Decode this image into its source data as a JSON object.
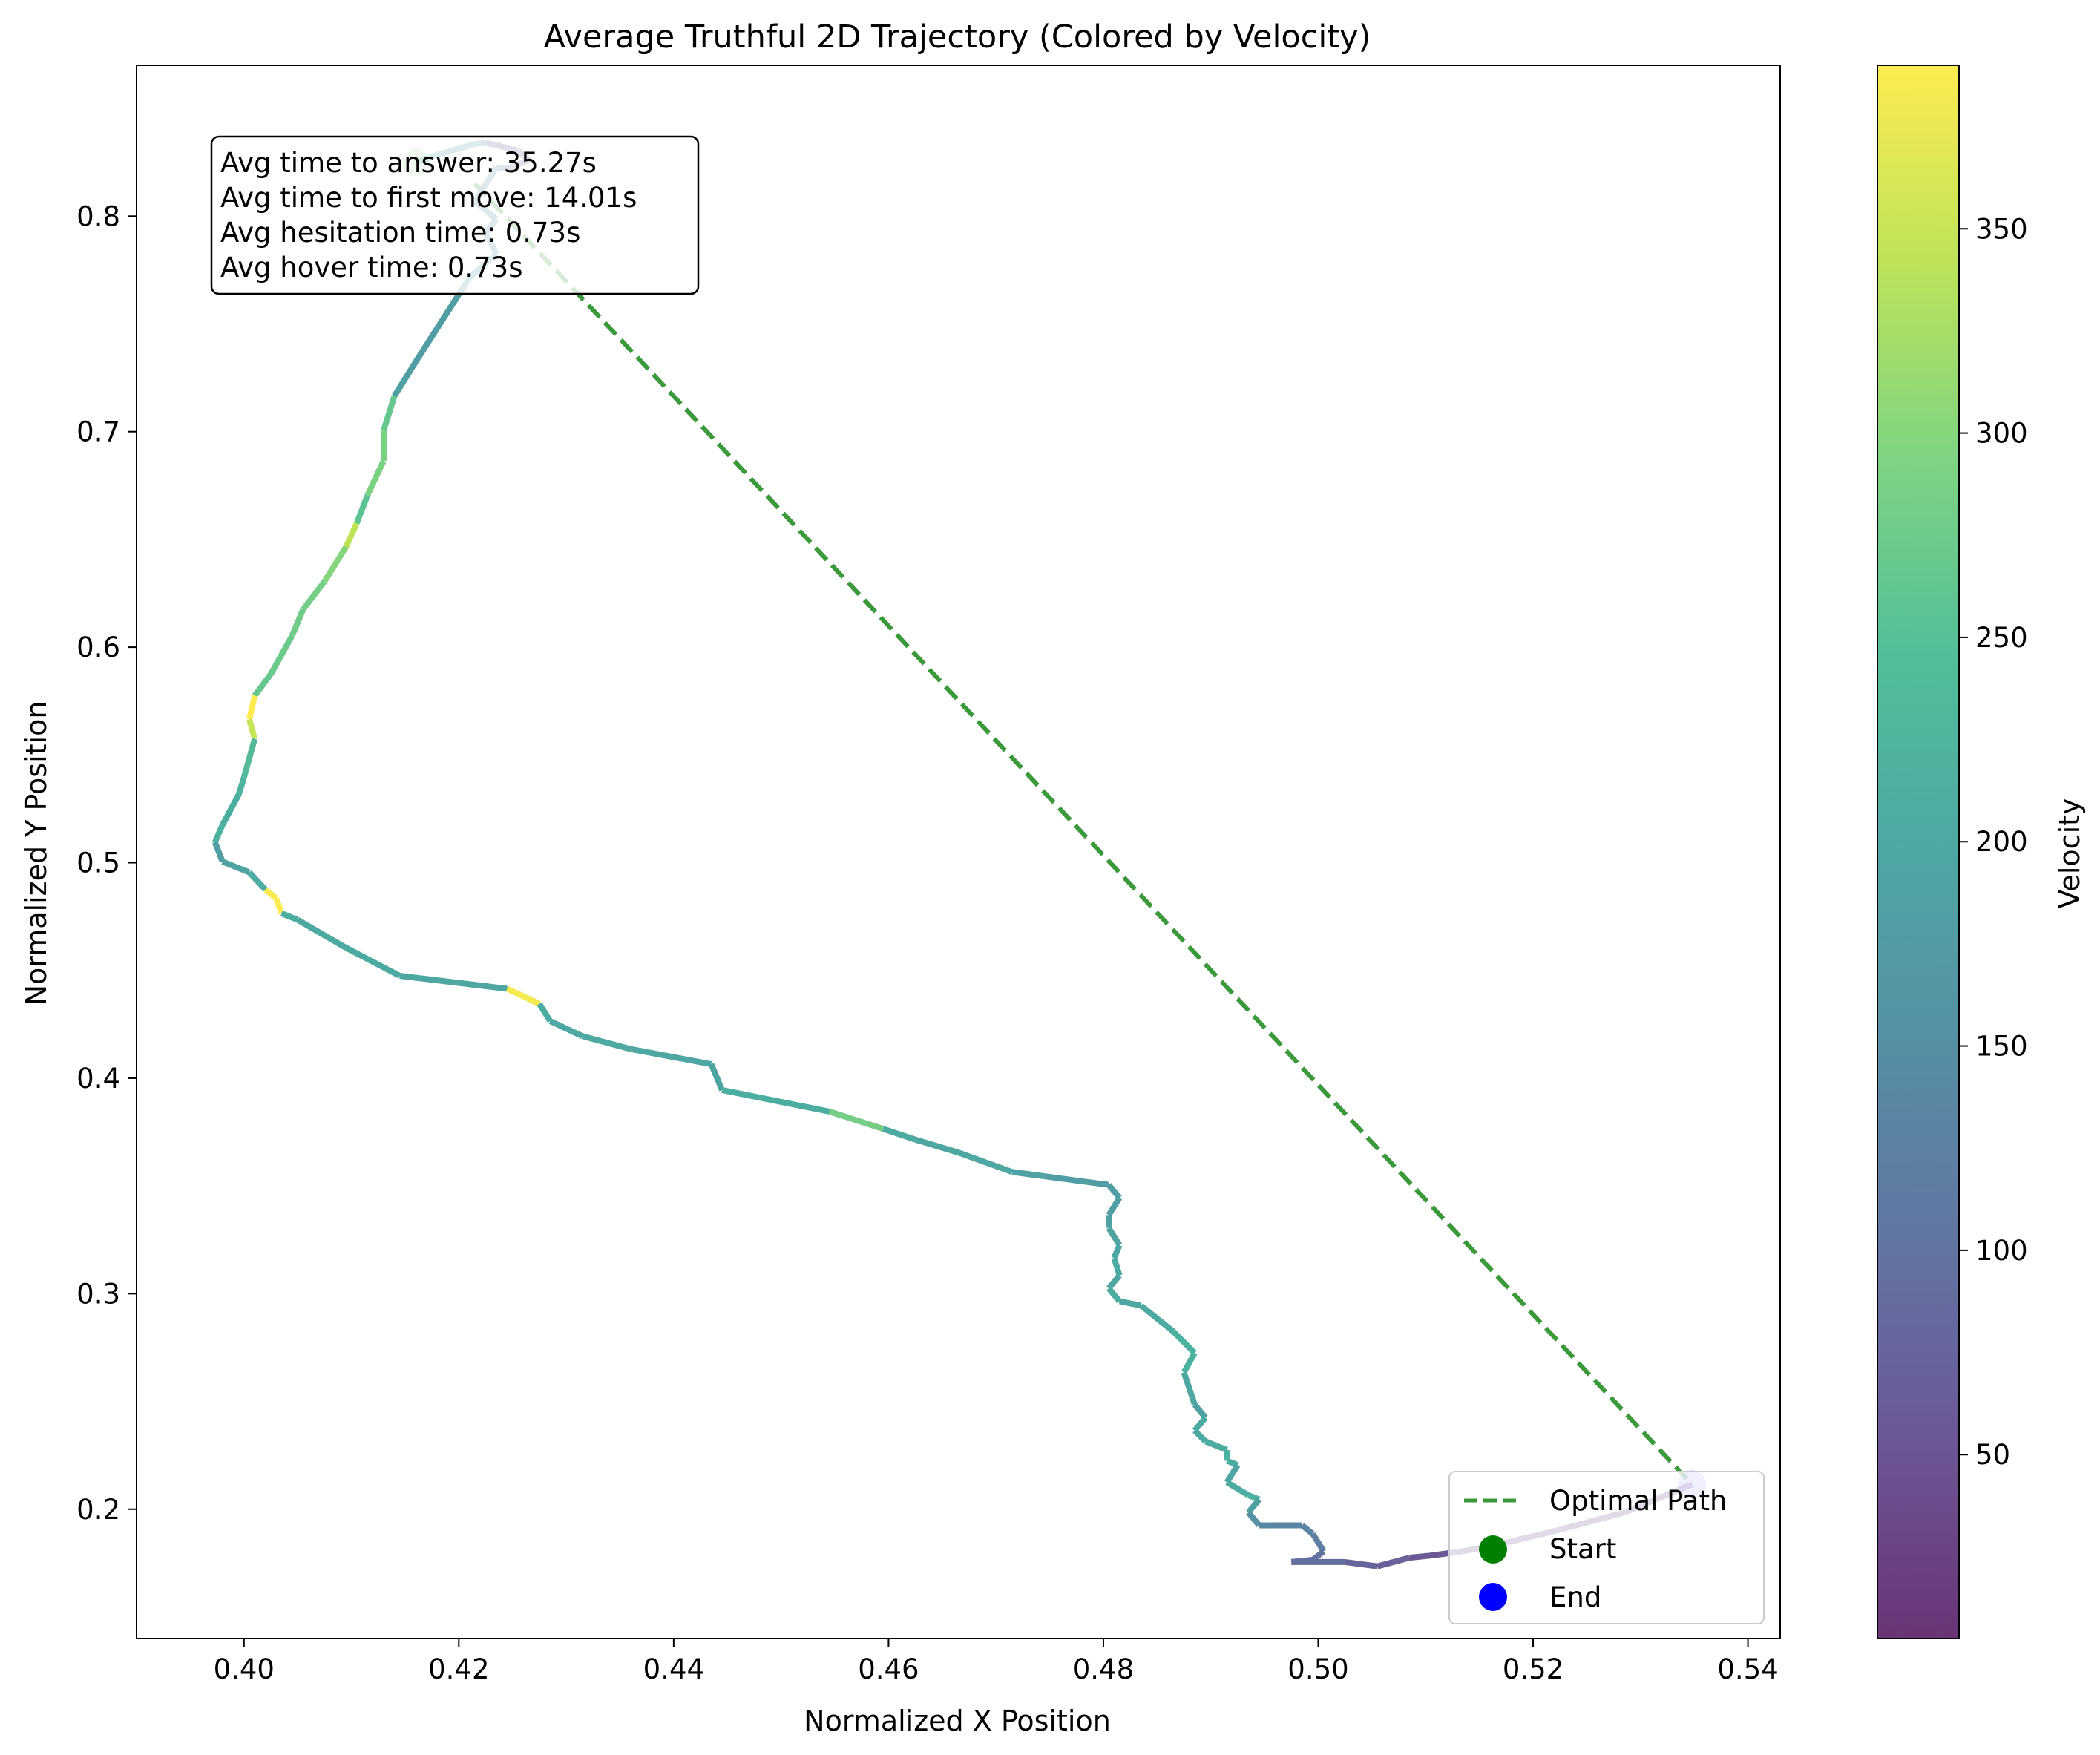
{
  "chart_data": {
    "type": "line",
    "title": "Average Truthful 2D Trajectory (Colored by Velocity)",
    "xlabel": "Normalized X Position",
    "ylabel": "Normalized Y Position",
    "xlim": [
      0.39,
      0.543
    ],
    "ylim": [
      0.14,
      0.87
    ],
    "xticks": [
      "0.40",
      "0.42",
      "0.44",
      "0.46",
      "0.48",
      "0.50",
      "0.52",
      "0.54"
    ],
    "yticks": [
      "0.2",
      "0.3",
      "0.4",
      "0.5",
      "0.6",
      "0.7",
      "0.8"
    ],
    "grid": false,
    "legend_position": "lower right",
    "annotations": [
      "Avg time to answer: 35.27s",
      "Avg time to first move: 14.01s",
      "Avg hesitation time: 0.73s",
      "Avg hover time: 0.73s"
    ],
    "colorbar": {
      "label": "Velocity",
      "colormap": "viridis",
      "range": [
        5,
        390
      ],
      "ticks": [
        "50",
        "100",
        "150",
        "200",
        "250",
        "300",
        "350"
      ]
    },
    "series": [
      {
        "name": "Optimal Path",
        "style": "dashed",
        "color": "#3a9a3a",
        "x": [
          0.4215,
          0.5348
        ],
        "y": [
          0.815,
          0.2115
        ]
      },
      {
        "name": "Start",
        "style": "marker",
        "color": "#008000",
        "x": [
          0.416
        ],
        "y": [
          0.825
        ]
      },
      {
        "name": "End",
        "style": "marker",
        "color": "#0000ff",
        "x": [
          0.5348
        ],
        "y": [
          0.2115
        ]
      }
    ],
    "trajectory": {
      "x": [
        0.416,
        0.418,
        0.4215,
        0.4225,
        0.4235,
        0.4245,
        0.4255,
        0.4265,
        0.4245,
        0.4235,
        0.4215,
        0.4235,
        0.4225,
        0.4235,
        0.421,
        0.416,
        0.414,
        0.413,
        0.413,
        0.4115,
        0.4105,
        0.4095,
        0.4075,
        0.4055,
        0.4045,
        0.4025,
        0.401,
        0.4005,
        0.401,
        0.4,
        0.3995,
        0.398,
        0.3973,
        0.398,
        0.4005,
        0.402,
        0.403,
        0.4035,
        0.405,
        0.4095,
        0.4145,
        0.4245,
        0.4275,
        0.4285,
        0.4315,
        0.436,
        0.4435,
        0.4445,
        0.4545,
        0.4595,
        0.4625,
        0.4665,
        0.4715,
        0.4745,
        0.4805,
        0.4815,
        0.4805,
        0.4805,
        0.4815,
        0.481,
        0.4815,
        0.4805,
        0.4815,
        0.4835,
        0.4855,
        0.4865,
        0.4885,
        0.4875,
        0.4885,
        0.4895,
        0.4885,
        0.4895,
        0.4915,
        0.4915,
        0.4925,
        0.4915,
        0.4935,
        0.4945,
        0.4935,
        0.4945,
        0.4955,
        0.4985,
        0.4995,
        0.5005,
        0.4995,
        0.4975,
        0.5025,
        0.5055,
        0.5085,
        0.5105,
        0.5135,
        0.5175,
        0.5225,
        0.5285,
        0.5348
      ],
      "y": [
        0.825,
        0.8285,
        0.8335,
        0.834,
        0.833,
        0.8315,
        0.8305,
        0.826,
        0.822,
        0.8225,
        0.807,
        0.7985,
        0.7925,
        0.7825,
        0.7715,
        0.7325,
        0.7165,
        0.7005,
        0.6865,
        0.6705,
        0.6575,
        0.6465,
        0.6305,
        0.6175,
        0.6055,
        0.5875,
        0.5775,
        0.5665,
        0.5575,
        0.5395,
        0.5315,
        0.5175,
        0.5095,
        0.5005,
        0.4955,
        0.4875,
        0.4835,
        0.4765,
        0.4735,
        0.4605,
        0.4475,
        0.4415,
        0.4345,
        0.4265,
        0.4195,
        0.4135,
        0.4065,
        0.3945,
        0.3845,
        0.3765,
        0.3715,
        0.3655,
        0.3565,
        0.3545,
        0.3505,
        0.3445,
        0.3365,
        0.3305,
        0.3225,
        0.3165,
        0.3085,
        0.3025,
        0.2965,
        0.2945,
        0.2865,
        0.2825,
        0.2725,
        0.2635,
        0.2485,
        0.2425,
        0.2365,
        0.2315,
        0.2275,
        0.2225,
        0.2205,
        0.2125,
        0.2065,
        0.2045,
        0.1985,
        0.1925,
        0.1925,
        0.1925,
        0.1885,
        0.1805,
        0.1765,
        0.1755,
        0.1755,
        0.1735,
        0.1775,
        0.1785,
        0.1805,
        0.1845,
        0.1905,
        0.1985,
        0.2115
      ],
      "velocity": [
        210,
        190,
        180,
        80,
        60,
        70,
        80,
        90,
        150,
        160,
        170,
        160,
        170,
        175,
        180,
        185,
        270,
        290,
        290,
        260,
        345,
        300,
        285,
        280,
        275,
        270,
        390,
        350,
        240,
        225,
        215,
        220,
        180,
        190,
        210,
        385,
        390,
        215,
        205,
        205,
        200,
        385,
        210,
        200,
        205,
        200,
        195,
        215,
        285,
        210,
        200,
        200,
        190,
        180,
        180,
        185,
        190,
        195,
        200,
        210,
        200,
        210,
        200,
        205,
        210,
        220,
        220,
        200,
        190,
        210,
        205,
        210,
        220,
        215,
        200,
        210,
        220,
        190,
        160,
        140,
        130,
        130,
        120,
        100,
        90,
        90,
        75,
        70,
        60,
        55,
        40,
        35,
        30,
        25
      ]
    }
  }
}
